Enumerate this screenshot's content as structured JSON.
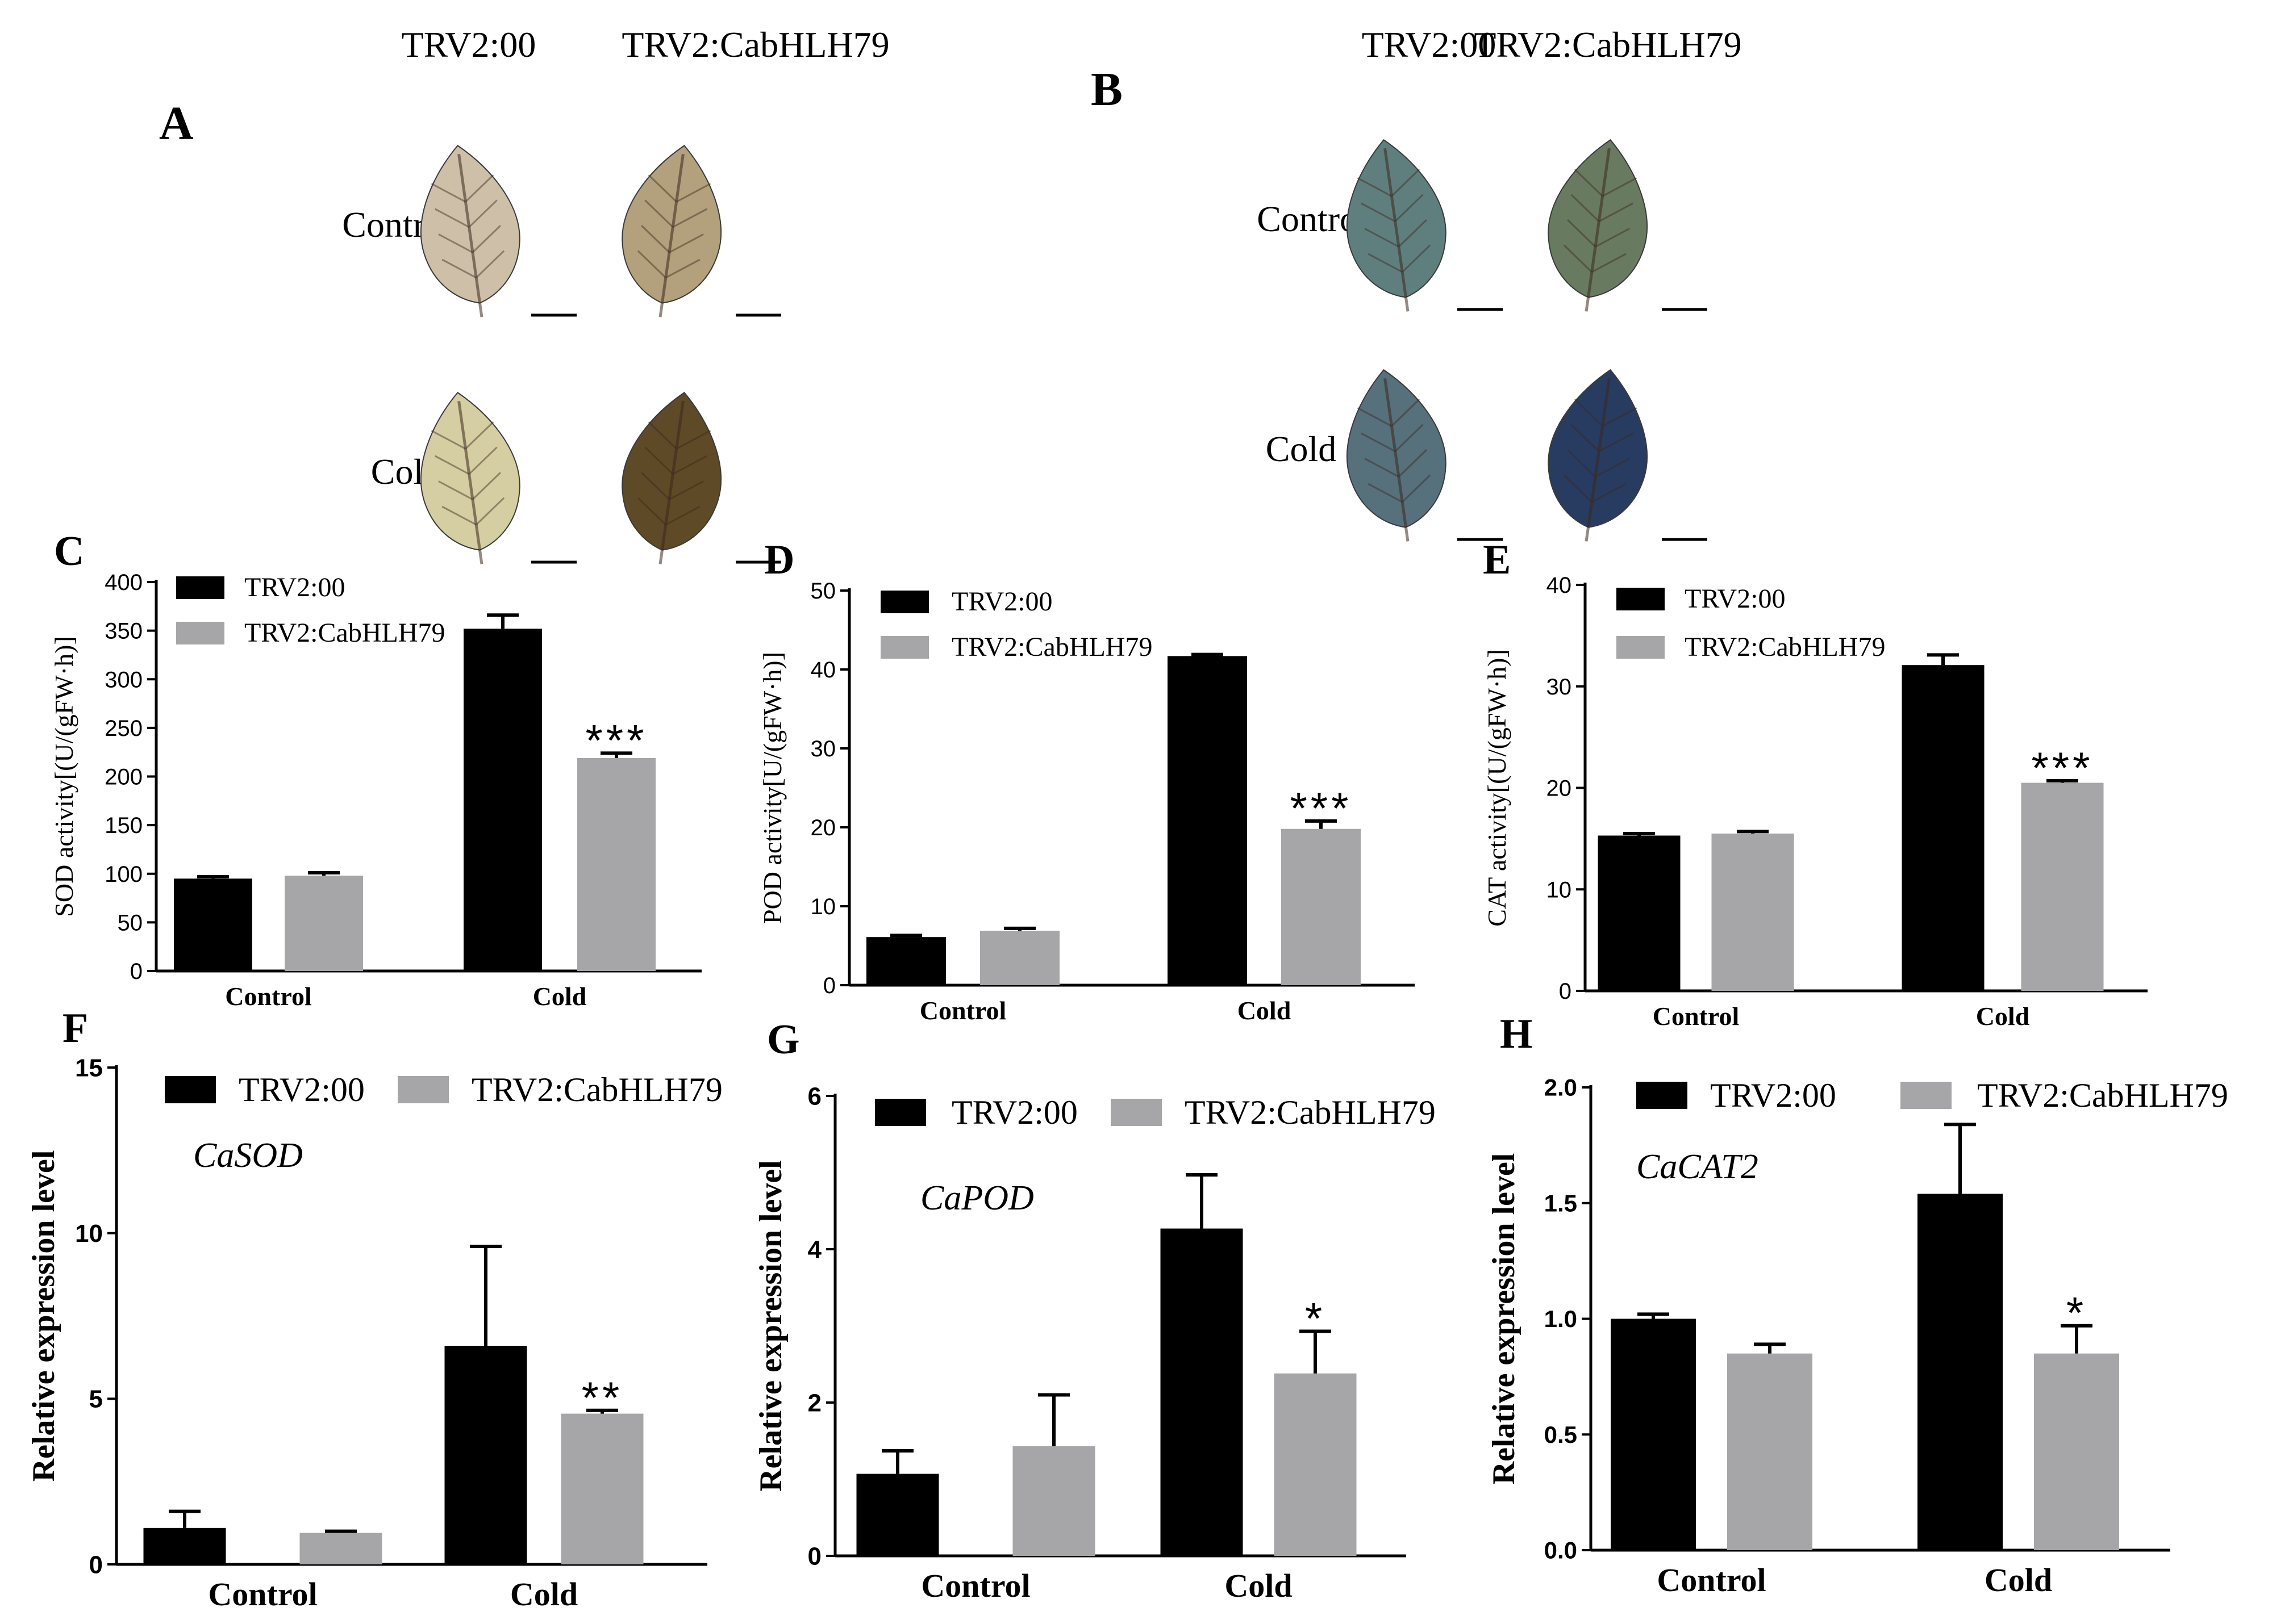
{
  "colors": {
    "control_series": "#000000",
    "treatment_series": "#a6a6a8"
  },
  "photo_panels": [
    {
      "letter": "A",
      "col_labels": [
        "TRV2:00",
        "TRV2:CabHLH79"
      ],
      "row_labels": [
        "Control",
        "Cold"
      ],
      "leaves": [
        [
          "#cdbfa8",
          "#b3a07c"
        ],
        [
          "#d4cea2",
          "#5e4a26"
        ]
      ]
    },
    {
      "letter": "B",
      "col_labels": [
        "TRV2:00",
        "TRV2:CabHLH79"
      ],
      "row_labels": [
        "Control",
        "Cold"
      ],
      "leaves": [
        [
          "#5f7f7e",
          "#687a60"
        ],
        [
          "#56707c",
          "#283b60"
        ]
      ]
    }
  ],
  "chart_data": [
    {
      "panel": "C",
      "type": "bar",
      "categories": [
        "Control",
        "Cold"
      ],
      "series": [
        {
          "name": "TRV2:00",
          "values": [
            95,
            352
          ],
          "errors": [
            2,
            14
          ]
        },
        {
          "name": "TRV2:CabHLH79",
          "values": [
            98,
            219
          ],
          "errors": [
            3,
            5
          ]
        }
      ],
      "ylabel": "SOD activity[(U/(gFW·h)]",
      "ylim": [
        0,
        400
      ],
      "yticks": [
        0,
        50,
        100,
        150,
        200,
        250,
        300,
        350,
        400
      ],
      "significance": [
        "",
        "***"
      ],
      "legend": "top-left"
    },
    {
      "panel": "D",
      "type": "bar",
      "categories": [
        "Control",
        "Cold"
      ],
      "series": [
        {
          "name": "TRV2:00",
          "values": [
            6.1,
            41.7
          ],
          "errors": [
            0.2,
            0.2
          ]
        },
        {
          "name": "TRV2:CabHLH79",
          "values": [
            6.9,
            19.8
          ],
          "errors": [
            0.3,
            1.0
          ]
        }
      ],
      "ylabel": "POD activity[U/(gFW·h)]",
      "ylim": [
        0,
        50
      ],
      "yticks": [
        0,
        10,
        20,
        30,
        40,
        50
      ],
      "significance": [
        "",
        "***"
      ],
      "legend": "top-left"
    },
    {
      "panel": "E",
      "type": "bar",
      "categories": [
        "Control",
        "Cold"
      ],
      "series": [
        {
          "name": "TRV2:00",
          "values": [
            15.3,
            32.1
          ],
          "errors": [
            0.2,
            1.0
          ]
        },
        {
          "name": "TRV2:CabHLH79",
          "values": [
            15.5,
            20.5
          ],
          "errors": [
            0.2,
            0.2
          ]
        }
      ],
      "ylabel": "CAT activity[(U/(gFW·h)]",
      "ylim": [
        0,
        40
      ],
      "yticks": [
        0,
        10,
        20,
        30,
        40
      ],
      "significance": [
        "",
        "***"
      ],
      "legend": "top-left"
    },
    {
      "panel": "F",
      "type": "bar",
      "categories": [
        "Control",
        "Cold"
      ],
      "series": [
        {
          "name": "TRV2:00",
          "values": [
            1.1,
            6.6
          ],
          "errors": [
            0.5,
            3.0
          ]
        },
        {
          "name": "TRV2:CabHLH79",
          "values": [
            0.95,
            4.55
          ],
          "errors": [
            0.05,
            0.1
          ]
        }
      ],
      "ylabel": "Relative expression level",
      "ylim": [
        0,
        15
      ],
      "yticks": [
        0,
        5,
        10,
        15
      ],
      "gene": "CaSOD",
      "significance": [
        "",
        "**"
      ],
      "legend": "top"
    },
    {
      "panel": "G",
      "type": "bar",
      "categories": [
        "Control",
        "Cold"
      ],
      "series": [
        {
          "name": "TRV2:00",
          "values": [
            1.07,
            4.27
          ],
          "errors": [
            0.3,
            0.7
          ]
        },
        {
          "name": "TRV2:CabHLH79",
          "values": [
            1.43,
            2.38
          ],
          "errors": [
            0.67,
            0.55
          ]
        }
      ],
      "ylabel": "Relative expression level",
      "ylim": [
        0,
        6
      ],
      "yticks": [
        0,
        2,
        4,
        6
      ],
      "gene": "CaPOD",
      "significance": [
        "",
        "*"
      ],
      "legend": "top"
    },
    {
      "panel": "H",
      "type": "bar",
      "categories": [
        "Control",
        "Cold"
      ],
      "series": [
        {
          "name": "TRV2:00",
          "values": [
            1.0,
            1.54
          ],
          "errors": [
            0.02,
            0.3
          ]
        },
        {
          "name": "TRV2:CabHLH79",
          "values": [
            0.85,
            0.85
          ],
          "errors": [
            0.04,
            0.12
          ]
        }
      ],
      "ylabel": "Relative expression level",
      "ylim": [
        0,
        2
      ],
      "yticks": [
        "0.0",
        "0.5",
        "1.0",
        "1.5",
        "2.0"
      ],
      "gene": "CaCAT2",
      "significance": [
        "",
        "*"
      ],
      "legend": "top"
    }
  ]
}
